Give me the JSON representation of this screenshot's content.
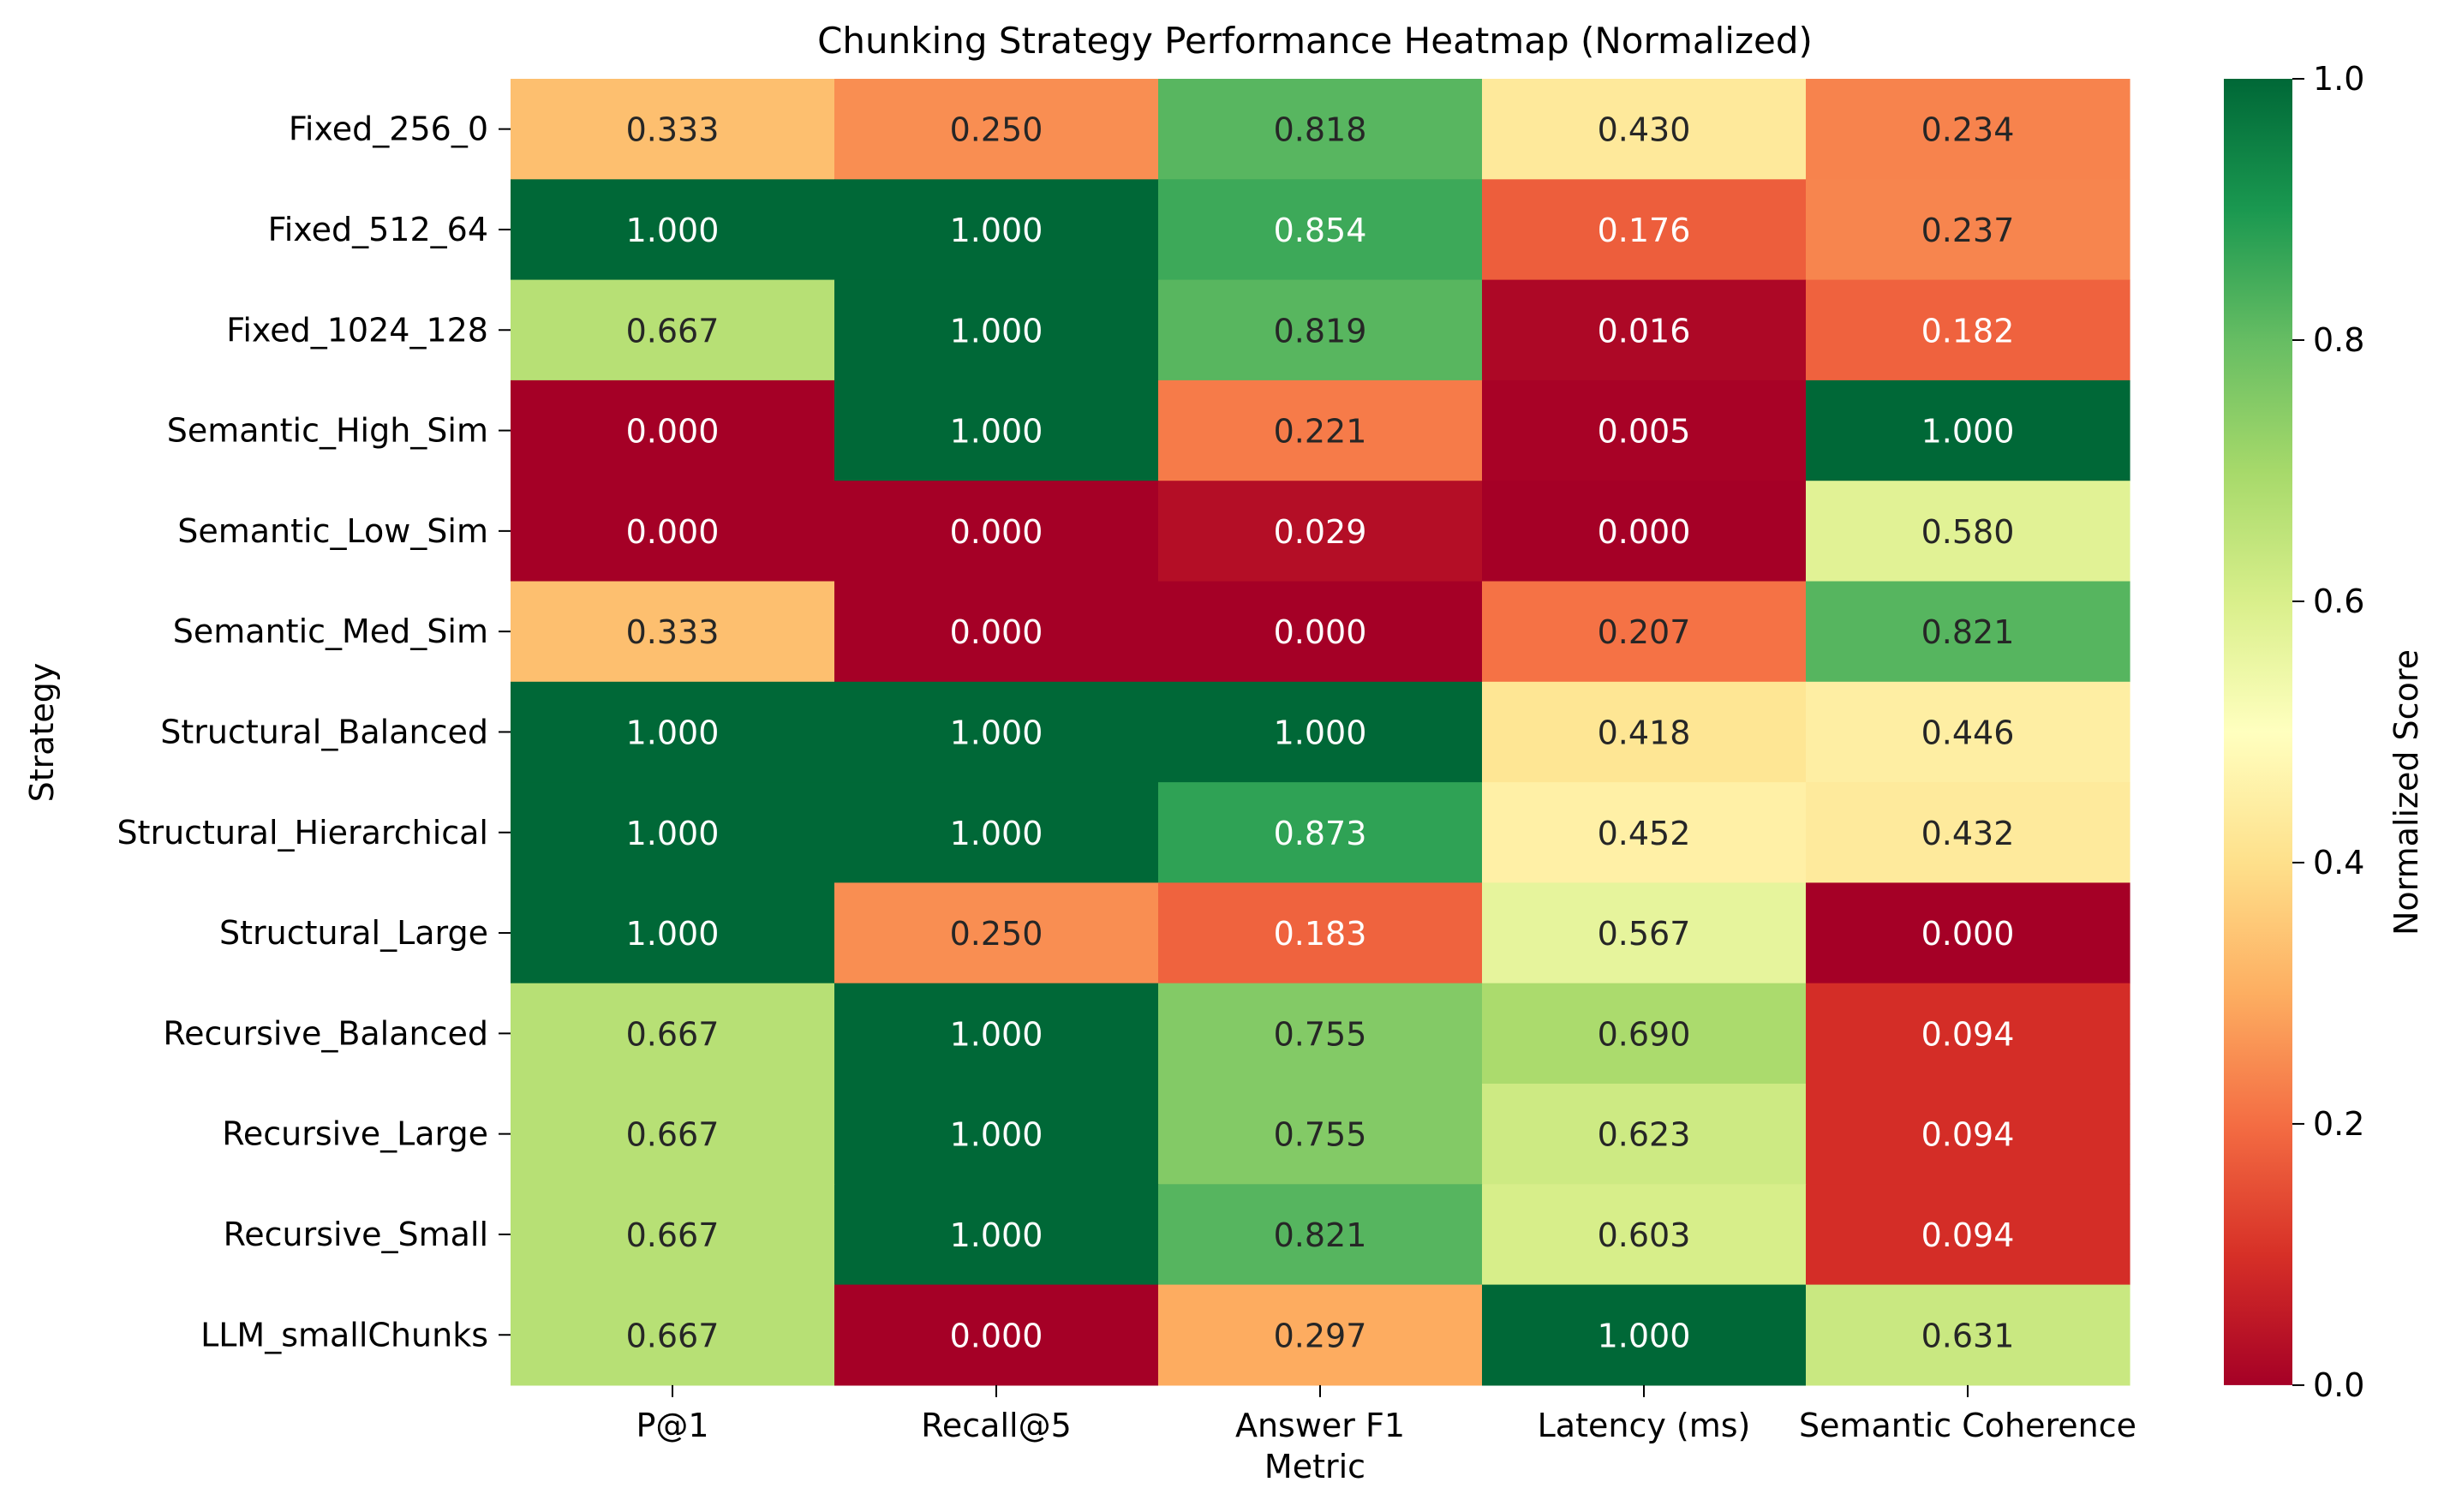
{
  "chart_data": {
    "type": "heatmap",
    "title": "Chunking Strategy Performance Heatmap (Normalized)",
    "xlabel": "Metric",
    "ylabel": "Strategy",
    "columns": [
      "P@1",
      "Recall@5",
      "Answer F1",
      "Latency (ms)",
      "Semantic Coherence"
    ],
    "rows": [
      "Fixed_256_0",
      "Fixed_512_64",
      "Fixed_1024_128",
      "Semantic_High_Sim",
      "Semantic_Low_Sim",
      "Semantic_Med_Sim",
      "Structural_Balanced",
      "Structural_Hierarchical",
      "Structural_Large",
      "Recursive_Balanced",
      "Recursive_Large",
      "Recursive_Small",
      "LLM_smallChunks"
    ],
    "values": [
      [
        0.333,
        0.25,
        0.818,
        0.43,
        0.234
      ],
      [
        1.0,
        1.0,
        0.854,
        0.176,
        0.237
      ],
      [
        0.667,
        1.0,
        0.819,
        0.016,
        0.182
      ],
      [
        0.0,
        1.0,
        0.221,
        0.005,
        1.0
      ],
      [
        0.0,
        0.0,
        0.029,
        0.0,
        0.58
      ],
      [
        0.333,
        0.0,
        0.0,
        0.207,
        0.821
      ],
      [
        1.0,
        1.0,
        1.0,
        0.418,
        0.446
      ],
      [
        1.0,
        1.0,
        0.873,
        0.452,
        0.432
      ],
      [
        1.0,
        0.25,
        0.183,
        0.567,
        0.0
      ],
      [
        0.667,
        1.0,
        0.755,
        0.69,
        0.094
      ],
      [
        0.667,
        1.0,
        0.755,
        0.623,
        0.094
      ],
      [
        0.667,
        1.0,
        0.821,
        0.603,
        0.094
      ],
      [
        0.667,
        0.0,
        0.297,
        1.0,
        0.631
      ]
    ],
    "value_format": "0.000",
    "colormap": "RdYlGn",
    "vmin": 0.0,
    "vmax": 1.0,
    "colorbar": {
      "label": "Normalized Score",
      "ticks": [
        "0.0",
        "0.2",
        "0.4",
        "0.6",
        "0.8",
        "1.0"
      ]
    }
  }
}
